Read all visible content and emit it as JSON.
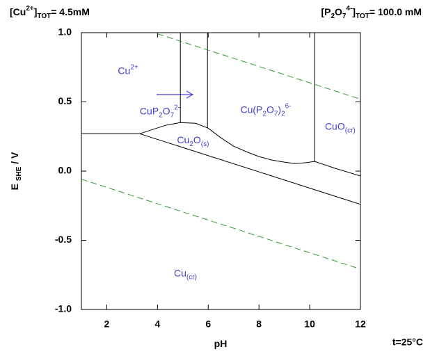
{
  "chart_data": {
    "type": "line",
    "title_left": [
      {
        "t": "[Cu"
      },
      {
        "t": "2+",
        "shift": "super"
      },
      {
        "t": "]"
      },
      {
        "t": "TOT",
        "shift": "sub"
      },
      {
        "t": "= 4.5mM"
      }
    ],
    "title_right": [
      {
        "t": "[P"
      },
      {
        "t": "2",
        "shift": "sub"
      },
      {
        "t": "O"
      },
      {
        "t": "7",
        "shift": "sub"
      },
      {
        "t": "4-",
        "shift": "super"
      },
      {
        "t": "]"
      },
      {
        "t": "TOT",
        "shift": "sub"
      },
      {
        "t": "= 100.0 mM"
      }
    ],
    "footnote": "t=25°C",
    "xlabel": [
      {
        "t": "pH"
      }
    ],
    "ylabel": [
      {
        "t": "E "
      },
      {
        "t": "SHE",
        "shift": "sub"
      },
      {
        "t": " / V"
      }
    ],
    "xlim": [
      1,
      12
    ],
    "ylim": [
      -1,
      1
    ],
    "xticks": [
      2,
      4,
      6,
      8,
      10,
      12
    ],
    "yticks": [
      {
        "value": -1,
        "label": "-1.0"
      },
      -0.5,
      {
        "value": 0,
        "label": "0.0"
      },
      0.5,
      {
        "value": 1,
        "label": "1.0"
      }
    ],
    "series": [
      {
        "color": "#000000",
        "x": [
          1,
          3.3
        ],
        "values": [
          0.27,
          0.27
        ]
      },
      {
        "color": "#000000",
        "x": [
          4.9,
          4.9
        ],
        "values": [
          1.0,
          0.35
        ]
      },
      {
        "color": "#000000",
        "x": [
          5.97,
          5.97
        ],
        "values": [
          1.0,
          0.31
        ]
      },
      {
        "color": "#000000",
        "x": [
          10.2,
          10.2
        ],
        "values": [
          1.0,
          0.07
        ]
      },
      {
        "color": "#000000",
        "x": [
          3.3,
          3.8,
          4.3,
          4.9,
          5.5,
          6,
          6.5,
          7,
          7.5,
          8,
          8.5,
          9,
          9.4,
          9.8,
          10.2,
          11,
          12
        ],
        "values": [
          0.27,
          0.3,
          0.33,
          0.35,
          0.345,
          0.31,
          0.24,
          0.18,
          0.14,
          0.105,
          0.08,
          0.065,
          0.055,
          0.06,
          0.07,
          0.02,
          -0.035
        ]
      },
      {
        "color": "#000000",
        "x": [
          3.3,
          12
        ],
        "values": [
          0.27,
          -0.24
        ]
      },
      {
        "color": "#2e9a2e",
        "dashed": true,
        "x": [
          4,
          12
        ],
        "values": [
          0.992,
          0.52
        ]
      },
      {
        "color": "#2e9a2e",
        "dashed": true,
        "x": [
          1,
          12
        ],
        "values": [
          -0.059,
          -0.708
        ]
      }
    ],
    "label_color": "#4040d0",
    "annotations": [
      {
        "x": 2.84,
        "y": 0.72,
        "parts": [
          {
            "t": "Cu"
          },
          {
            "t": "2+",
            "shift": "super"
          }
        ]
      },
      {
        "x": 4.1,
        "y": 0.43,
        "parts": [
          {
            "t": "CuP"
          },
          {
            "t": "2",
            "shift": "sub"
          },
          {
            "t": "O"
          },
          {
            "t": "7",
            "shift": "sub"
          },
          {
            "t": "2-",
            "shift": "super"
          }
        ]
      },
      {
        "x": 8.27,
        "y": 0.44,
        "parts": [
          {
            "t": "Cu(P"
          },
          {
            "t": "2",
            "shift": "sub"
          },
          {
            "t": "O"
          },
          {
            "t": "7",
            "shift": "sub"
          },
          {
            "t": ")"
          },
          {
            "t": "2",
            "shift": "sub"
          },
          {
            "t": "6-",
            "shift": "super"
          }
        ]
      },
      {
        "x": 11.2,
        "y": 0.32,
        "parts": [
          {
            "t": "CuO"
          },
          {
            "t": "(cr)",
            "shift": "sub"
          }
        ]
      },
      {
        "x": 5.4,
        "y": 0.22,
        "parts": [
          {
            "t": "Cu"
          },
          {
            "t": "2",
            "shift": "sub"
          },
          {
            "t": "O"
          },
          {
            "t": "(s)",
            "shift": "sub"
          }
        ]
      },
      {
        "x": 5.1,
        "y": -0.74,
        "parts": [
          {
            "t": "Cu"
          },
          {
            "t": "(cr)",
            "shift": "sub"
          }
        ]
      }
    ]
  }
}
